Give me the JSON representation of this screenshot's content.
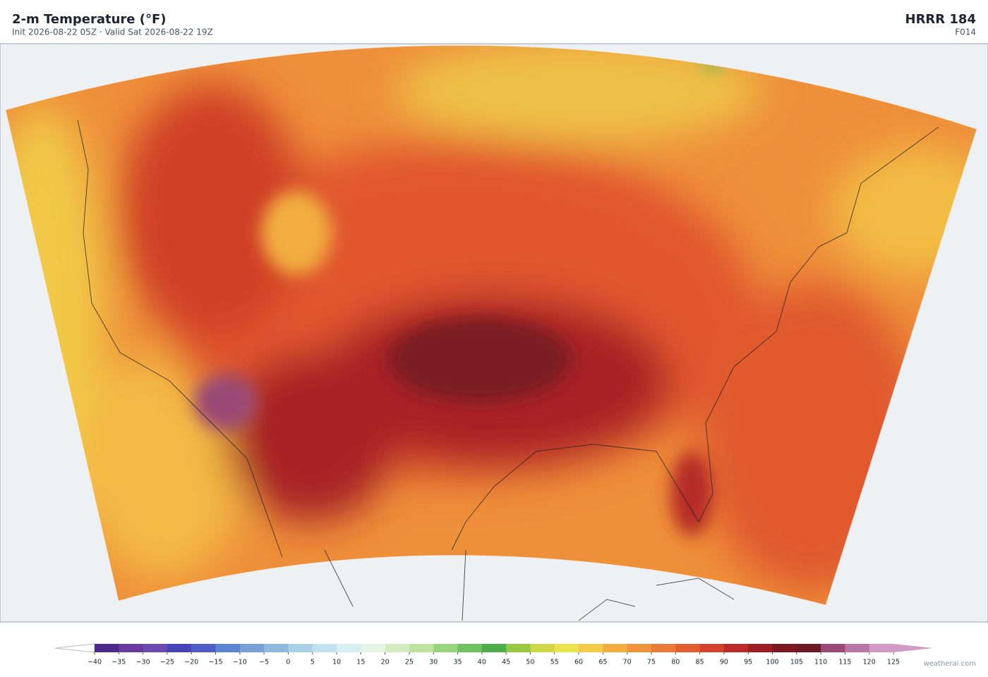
{
  "header": {
    "title": "2-m Temperature  (°F)",
    "subtitle": "Init 2026-08-22 05Z  ·  Valid Sat 2026-08-22 19Z",
    "model": "HRRR  184",
    "forecast_hour": "F014"
  },
  "colorbar": {
    "ticks": [
      {
        "value": -40,
        "label": "−40"
      },
      {
        "value": -35,
        "label": "−35"
      },
      {
        "value": -30,
        "label": "−30"
      },
      {
        "value": -25,
        "label": "−25"
      },
      {
        "value": -20,
        "label": "−20"
      },
      {
        "value": -15,
        "label": "−15"
      },
      {
        "value": -10,
        "label": "−10"
      },
      {
        "value": -5,
        "label": "−5"
      },
      0,
      5,
      10,
      15,
      20,
      25,
      30,
      35,
      40,
      45,
      50,
      55,
      60,
      65,
      70,
      75,
      80,
      85,
      90,
      95,
      100,
      105,
      110,
      115,
      120,
      125
    ],
    "colors": [
      "#4b2a8a",
      "#6a3a9f",
      "#6b4bb0",
      "#4544b8",
      "#4d5ec8",
      "#5b85d3",
      "#76a2d8",
      "#8fbade",
      "#a8d0e6",
      "#c0e2ee",
      "#d8eff2",
      "#e4f5e5",
      "#d3ecc0",
      "#bde39e",
      "#98d57c",
      "#70c25f",
      "#4cae4a",
      "#96c843",
      "#cfd846",
      "#ece24a",
      "#f3cb47",
      "#f2ae3f",
      "#ee943a",
      "#ea7a35",
      "#e45d2e",
      "#d5412a",
      "#bb2a26",
      "#9c1e23",
      "#7e1820",
      "#6e1a24",
      "#9a4a76",
      "#b974a8",
      "#d49ac6"
    ],
    "under_color": "#ffffff",
    "over_color": "#d49ac6"
  },
  "footer": {
    "credit": "weatherai.com"
  }
}
